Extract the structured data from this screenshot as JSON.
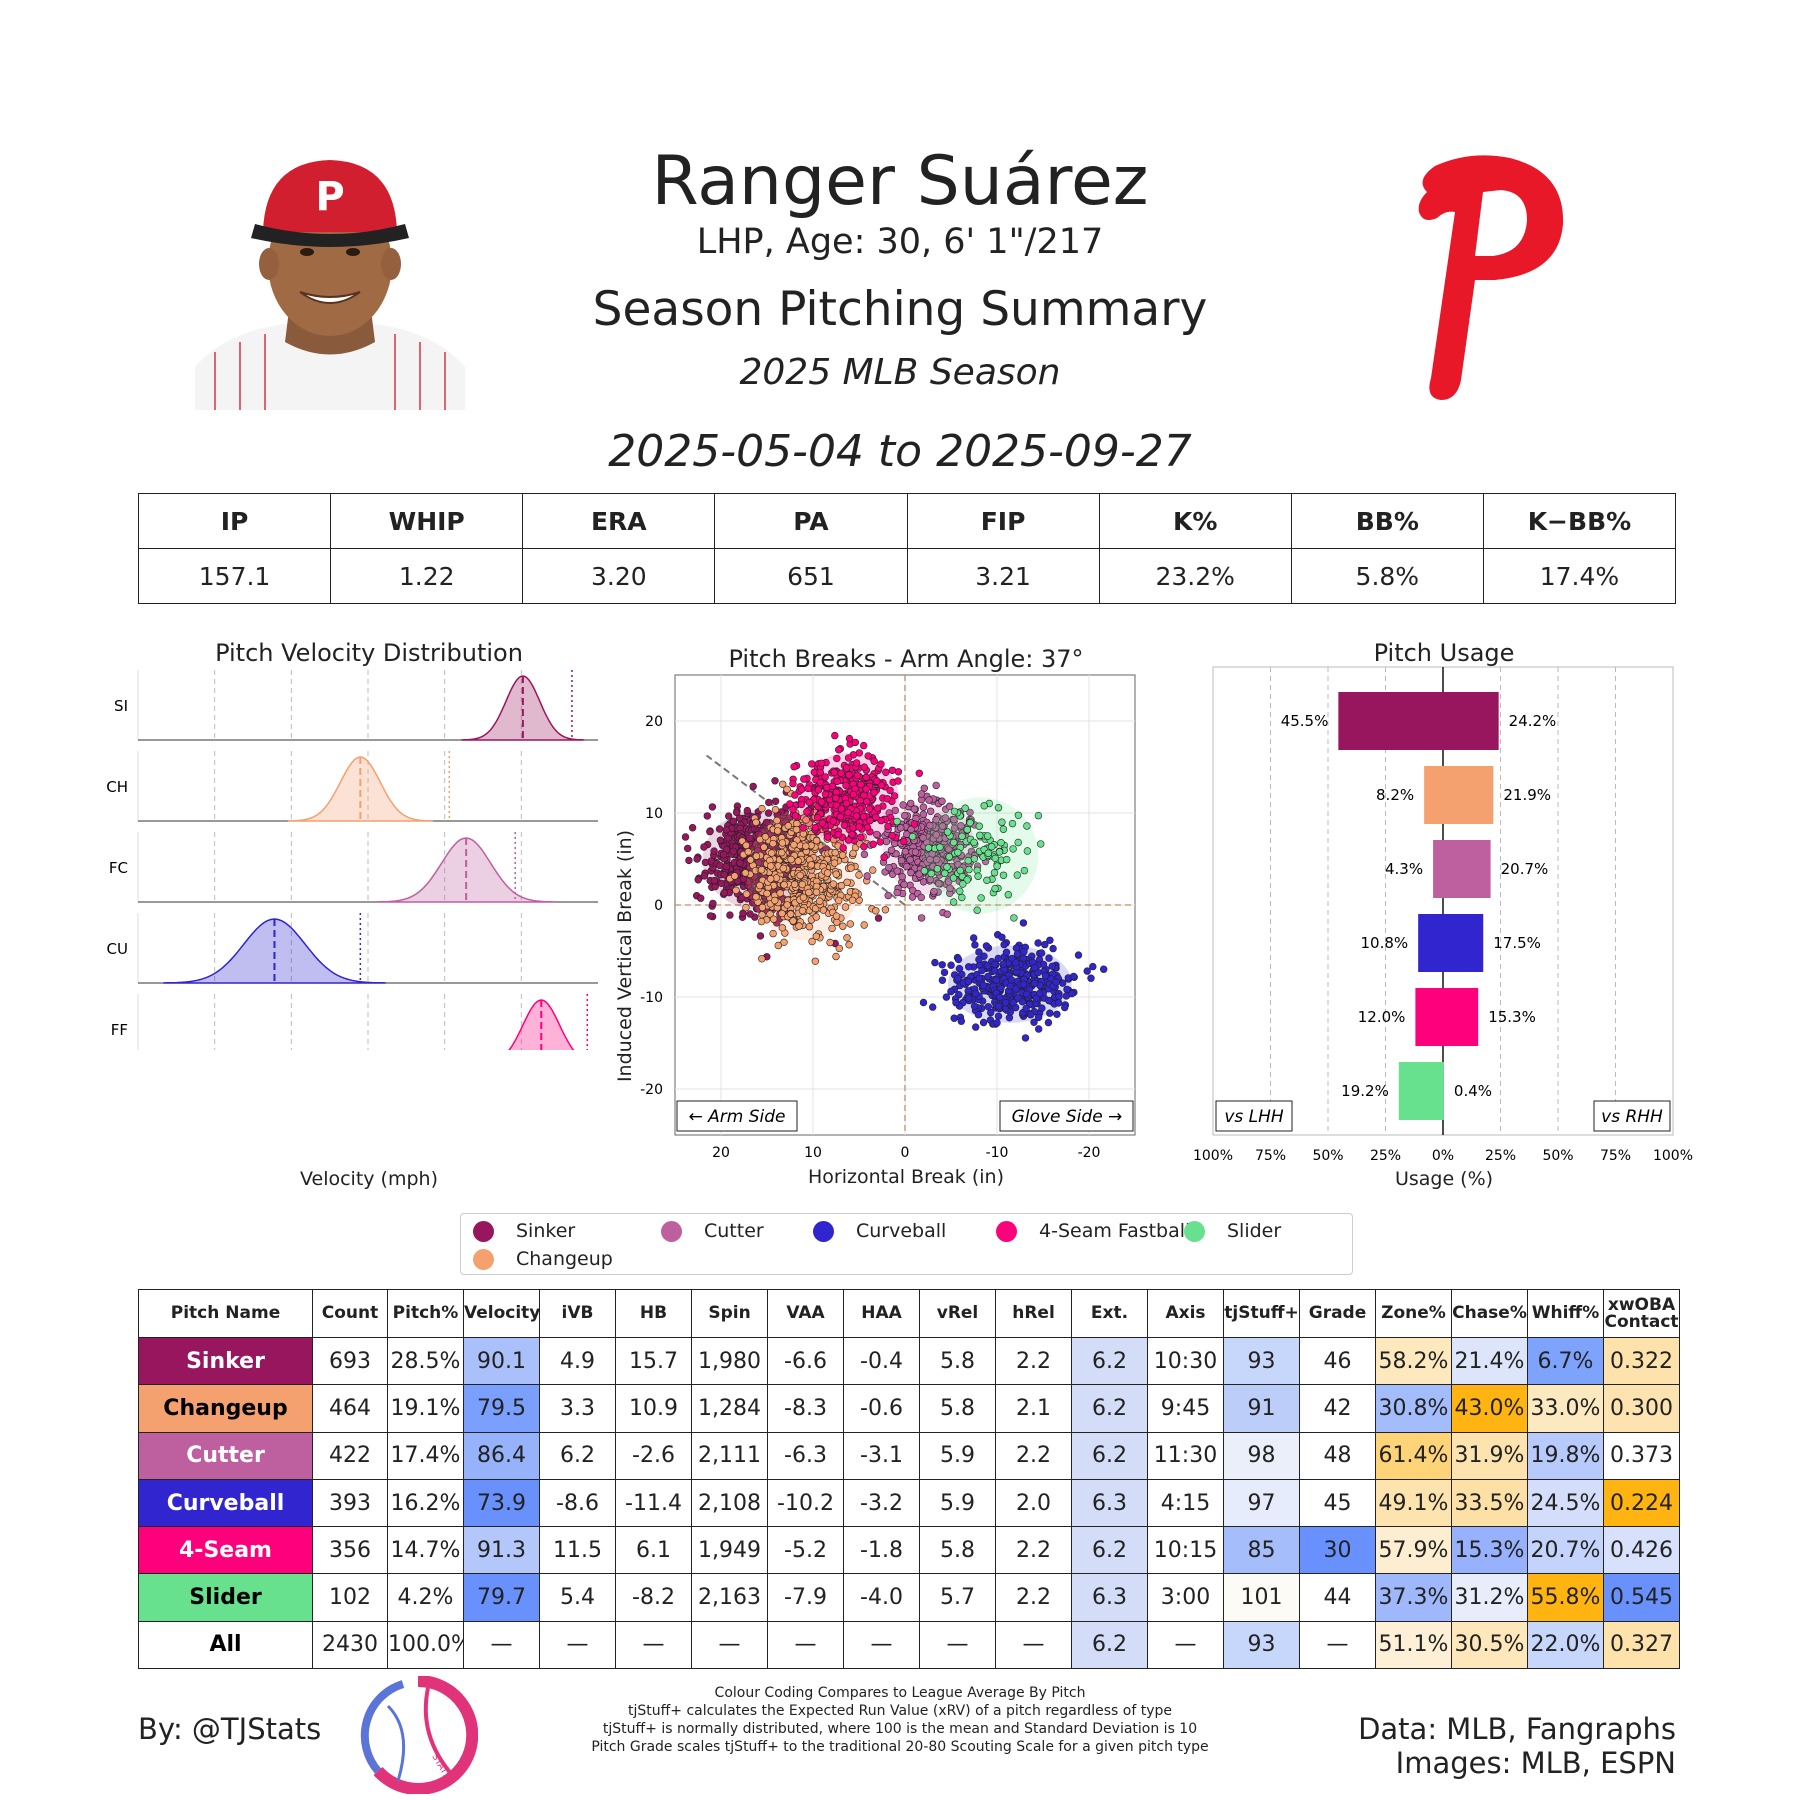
{
  "header": {
    "player_name": "Ranger Suárez",
    "player_info": "LHP, Age: 30, 6' 1\"/217",
    "title": "Season Pitching Summary",
    "season": "2025 MLB Season",
    "date_range": "2025-05-04 to 2025-09-27"
  },
  "colors": {
    "SI": "#98165D",
    "CH": "#F4A06F",
    "FC": "#BE5FA0",
    "CU": "#3025CE",
    "FF": "#FF007D",
    "SL": "#67E18D",
    "team_red": "#E81828",
    "table_blue_strong": "#648FFF",
    "table_orange_strong": "#FFB000"
  },
  "stats_table": {
    "headers": [
      "IP",
      "WHIP",
      "ERA",
      "PA",
      "FIP",
      "K%",
      "BB%",
      "K−BB%"
    ],
    "values": [
      "157.1",
      "1.22",
      "3.20",
      "651",
      "3.21",
      "23.2%",
      "5.8%",
      "17.4%"
    ]
  },
  "velocity_panel": {
    "title": "Pitch Velocity Distribution",
    "xlabel": "Velocity (mph)",
    "x_ticks": [
      "65",
      "70",
      "75",
      "80",
      "85",
      "90"
    ]
  },
  "break_panel": {
    "title": "Pitch Breaks - Arm Angle: 37°",
    "xlabel": "Horizontal Break (in)",
    "ylabel": "Induced Vertical Break (in)",
    "x_ticks": [
      "20",
      "10",
      "0",
      "-10",
      "-20"
    ],
    "y_ticks": [
      "20",
      "10",
      "0",
      "-10",
      "-20"
    ],
    "arm_side_label": "← Arm Side",
    "glove_side_label": "Glove Side →"
  },
  "usage_panel": {
    "title": "Pitch Usage",
    "xlabel": "Usage (%)",
    "x_ticks": [
      "100%",
      "75%",
      "50%",
      "25%",
      "0%",
      "25%",
      "50%",
      "75%",
      "100%"
    ],
    "vs_lhh_label": "vs LHH",
    "vs_rhh_label": "vs RHH"
  },
  "chart_data": [
    {
      "type": "area",
      "title": "Pitch Velocity Distribution",
      "xlabel": "Velocity (mph)",
      "xlim": [
        65,
        95
      ],
      "series": [
        {
          "name": "SI",
          "mean": 90.1,
          "sd": 1.1,
          "league_avg": 93.3
        },
        {
          "name": "CH",
          "mean": 79.5,
          "sd": 1.3,
          "league_avg": 85.3
        },
        {
          "name": "FC",
          "mean": 86.4,
          "sd": 1.6,
          "league_avg": 89.6
        },
        {
          "name": "CU",
          "mean": 73.9,
          "sd": 2.0,
          "league_avg": 79.5
        },
        {
          "name": "FF",
          "mean": 91.3,
          "sd": 1.2,
          "league_avg": 94.3
        },
        {
          "name": "SL",
          "mean": 79.7,
          "sd": 1.1,
          "league_avg": 85.6
        }
      ]
    },
    {
      "type": "scatter",
      "title": "Pitch Breaks - Arm Angle: 37°",
      "xlabel": "Horizontal Break (in)",
      "ylabel": "Induced Vertical Break (in)",
      "xlim": [
        25,
        -25
      ],
      "ylim": [
        -25,
        25
      ],
      "series": [
        {
          "name": "Sinker",
          "code": "SI",
          "count": 693,
          "hb": 15.7,
          "ivb": 4.9
        },
        {
          "name": "Changeup",
          "code": "CH",
          "count": 464,
          "hb": 10.9,
          "ivb": 3.3
        },
        {
          "name": "Cutter",
          "code": "FC",
          "count": 422,
          "hb": -2.6,
          "ivb": 6.2
        },
        {
          "name": "Curveball",
          "code": "CU",
          "count": 393,
          "hb": -11.4,
          "ivb": -8.6
        },
        {
          "name": "4-Seam Fastball",
          "code": "FF",
          "count": 356,
          "hb": 6.1,
          "ivb": 11.5
        },
        {
          "name": "Slider",
          "code": "SL",
          "count": 102,
          "hb": -8.2,
          "ivb": 5.4
        }
      ]
    },
    {
      "type": "bar",
      "title": "Pitch Usage",
      "xlabel": "Usage (%)",
      "xlim": [
        -100,
        100
      ],
      "categories": [
        "SI",
        "CH",
        "FC",
        "CU",
        "FF",
        "SL"
      ],
      "series": [
        {
          "name": "vs LHH",
          "values": [
            45.5,
            8.2,
            4.3,
            10.8,
            12.0,
            19.2
          ],
          "labels": [
            "45.5%",
            "8.2%",
            "4.3%",
            "10.8%",
            "12.0%",
            "19.2%"
          ]
        },
        {
          "name": "vs RHH",
          "values": [
            24.2,
            21.9,
            20.7,
            17.5,
            15.3,
            0.4
          ],
          "labels": [
            "24.2%",
            "21.9%",
            "20.7%",
            "17.5%",
            "15.3%",
            "0.4%"
          ]
        }
      ]
    }
  ],
  "legend": [
    {
      "label": "Sinker",
      "code": "SI"
    },
    {
      "label": "Cutter",
      "code": "FC"
    },
    {
      "label": "Curveball",
      "code": "CU"
    },
    {
      "label": "4-Seam Fastball",
      "code": "FF"
    },
    {
      "label": "Slider",
      "code": "SL"
    },
    {
      "label": "Changeup",
      "code": "CH"
    }
  ],
  "pitch_table": {
    "headers": [
      "Pitch Name",
      "Count",
      "Pitch%",
      "Velocity",
      "iVB",
      "HB",
      "Spin",
      "VAA",
      "HAA",
      "vRel",
      "hRel",
      "Ext.",
      "Axis",
      "tjStuff+",
      "Grade",
      "Zone%",
      "Chase%",
      "Whiff%",
      "xwOBA Contact"
    ],
    "rows": [
      {
        "name": "Sinker",
        "code": "SI",
        "text_color": "#ffffff",
        "cells": [
          "693",
          "28.5%",
          "90.1",
          "4.9",
          "15.7",
          "1,980",
          "-6.6",
          "-0.4",
          "5.8",
          "2.2",
          "6.2",
          "10:30",
          "93",
          "46",
          "58.2%",
          "21.4%",
          "6.7%",
          "0.322"
        ],
        "shades": [
          "",
          "",
          "#a9c0fa",
          "",
          "",
          "",
          "",
          "",
          "",
          "",
          "#d3ddf8",
          "",
          "#c7d6fb",
          "",
          "#fde9bd",
          "#dde5fb",
          "#7ea3fd",
          "#fde2ab"
        ]
      },
      {
        "name": "Changeup",
        "code": "CH",
        "text_color": "#000000",
        "cells": [
          "464",
          "19.1%",
          "79.5",
          "3.3",
          "10.9",
          "1,284",
          "-8.3",
          "-0.6",
          "5.8",
          "2.1",
          "6.2",
          "9:45",
          "91",
          "42",
          "30.8%",
          "43.0%",
          "33.0%",
          "0.300"
        ],
        "shades": [
          "",
          "",
          "#7b9ffc",
          "",
          "",
          "",
          "",
          "",
          "",
          "",
          "#d3ddf8",
          "",
          "#bccdfa",
          "",
          "#a3bcfb",
          "#ffb411",
          "#fde9c0",
          "#fde3b0"
        ]
      },
      {
        "name": "Cutter",
        "code": "FC",
        "text_color": "#ffffff",
        "cells": [
          "422",
          "17.4%",
          "86.4",
          "6.2",
          "-2.6",
          "2,111",
          "-6.3",
          "-3.1",
          "5.9",
          "2.2",
          "6.2",
          "11:30",
          "98",
          "48",
          "61.4%",
          "31.9%",
          "19.8%",
          "0.373"
        ],
        "shades": [
          "",
          "",
          "#96b2fb",
          "",
          "",
          "",
          "",
          "",
          "",
          "",
          "#d3ddf8",
          "",
          "#ebeffa",
          "",
          "#ffd377",
          "#fde3ae",
          "#b7cafb",
          ""
        ]
      },
      {
        "name": "Curveball",
        "code": "CU",
        "text_color": "#ffffff",
        "cells": [
          "393",
          "16.2%",
          "73.9",
          "-8.6",
          "-11.4",
          "2,108",
          "-10.2",
          "-3.2",
          "5.9",
          "2.0",
          "6.3",
          "4:15",
          "97",
          "45",
          "49.1%",
          "33.5%",
          "24.5%",
          "0.224"
        ],
        "shades": [
          "",
          "",
          "#6891fd",
          "",
          "",
          "",
          "",
          "",
          "",
          "",
          "#d3ddf8",
          "",
          "#e6ecfb",
          "",
          "#fde3ae",
          "#fde0a6",
          "#d4defb",
          "#ffb411"
        ]
      },
      {
        "name": "4-Seam",
        "code": "FF",
        "text_color": "#ffffff",
        "cells": [
          "356",
          "14.7%",
          "91.3",
          "11.5",
          "6.1",
          "1,949",
          "-5.2",
          "-1.8",
          "5.8",
          "2.2",
          "6.2",
          "10:15",
          "85",
          "30",
          "57.9%",
          "15.3%",
          "20.7%",
          "0.426"
        ],
        "shades": [
          "",
          "",
          "#b3c7fb",
          "",
          "",
          "",
          "",
          "",
          "",
          "",
          "#d3ddf8",
          "",
          "#a6bdfb",
          "#6891fd",
          "#fdeed1",
          "#97b1fc",
          "#c3d3fb",
          "#d8e1fb"
        ]
      },
      {
        "name": "Slider",
        "code": "SL",
        "text_color": "#000000",
        "cells": [
          "102",
          "4.2%",
          "79.7",
          "5.4",
          "-8.2",
          "2,163",
          "-7.9",
          "-4.0",
          "5.7",
          "2.2",
          "6.3",
          "3:00",
          "101",
          "44",
          "37.3%",
          "31.2%",
          "55.8%",
          "0.545"
        ],
        "shades": [
          "",
          "",
          "#6891fd",
          "",
          "",
          "",
          "",
          "",
          "",
          "",
          "#d3ddf8",
          "",
          "#fcfbf6",
          "",
          "#9fb8fb",
          "#e7edfb",
          "#ffb411",
          "#6891fd"
        ]
      },
      {
        "name": "All",
        "code": "",
        "text_color": "#000000",
        "cells": [
          "2430",
          "100.0%",
          "—",
          "—",
          "—",
          "—",
          "—",
          "—",
          "—",
          "—",
          "6.2",
          "—",
          "93",
          "—",
          "51.1%",
          "30.5%",
          "22.0%",
          "0.327"
        ],
        "shades": [
          "",
          "",
          "",
          "",
          "",
          "",
          "",
          "",
          "",
          "",
          "#d3ddf8",
          "",
          "#c7d6fb",
          "",
          "#fdf0d6",
          "#fde7bb",
          "#c7d6fb",
          "#fde2ab"
        ]
      }
    ]
  },
  "footer": {
    "by_line": "By: @TJStats",
    "logo_text": "STATS",
    "notes": [
      "Colour Coding Compares to League Average By Pitch",
      "tjStuff+ calculates the Expected Run Value (xRV) of a pitch regardless of type",
      "tjStuff+ is normally distributed, where 100 is the mean and Standard Deviation is 10",
      "Pitch Grade scales tjStuff+ to the traditional 20-80 Scouting Scale for a given pitch type"
    ],
    "data_source": "Data: MLB, Fangraphs",
    "image_source": "Images: MLB, ESPN"
  }
}
